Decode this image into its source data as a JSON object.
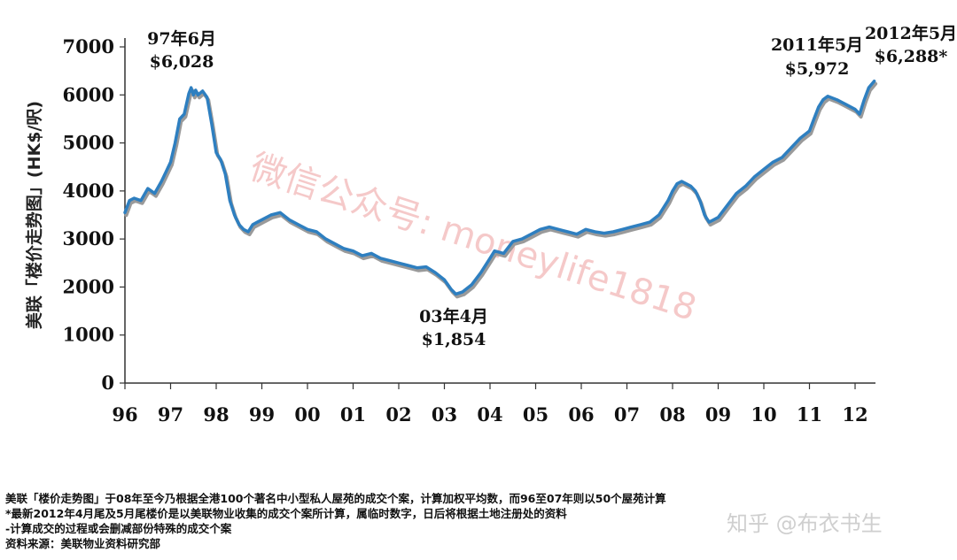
{
  "chart_data": {
    "type": "line",
    "ylabel": "美联「楼价走势图」(HK$/呎)",
    "yticks": [
      0,
      1000,
      2000,
      3000,
      4000,
      5000,
      6000,
      7000
    ],
    "ylim": [
      0,
      7000
    ],
    "xticks": [
      "96",
      "97",
      "98",
      "99",
      "00",
      "01",
      "02",
      "03",
      "04",
      "05",
      "06",
      "07",
      "08",
      "09",
      "10",
      "11",
      "12"
    ],
    "xlim": [
      1996.0,
      2012.45
    ],
    "grid": false,
    "colors": {
      "line": "#2e7fc0",
      "shadow": "#9a9a9a"
    },
    "series": [
      {
        "x": [
          1996.0,
          1996.1,
          1996.2,
          1996.35,
          1996.5,
          1996.65,
          1996.8,
          1996.9,
          1997.0,
          1997.1,
          1997.2,
          1997.3,
          1997.4,
          1997.45,
          1997.5,
          1997.55,
          1997.6,
          1997.7,
          1997.8,
          1997.9,
          1998.0,
          1998.1,
          1998.2,
          1998.3,
          1998.4,
          1998.5,
          1998.6,
          1998.7,
          1998.8,
          1998.9,
          1999.0,
          1999.2,
          1999.4,
          1999.6,
          1999.8,
          2000.0,
          2000.2,
          2000.4,
          2000.6,
          2000.8,
          2001.0,
          2001.2,
          2001.4,
          2001.6,
          2001.8,
          2002.0,
          2002.2,
          2002.4,
          2002.6,
          2002.8,
          2003.0,
          2003.15,
          2003.25,
          2003.4,
          2003.6,
          2003.8,
          2004.0,
          2004.1,
          2004.3,
          2004.5,
          2004.7,
          2004.9,
          2005.1,
          2005.3,
          2005.5,
          2005.7,
          2005.9,
          2006.1,
          2006.3,
          2006.5,
          2006.7,
          2006.9,
          2007.1,
          2007.3,
          2007.5,
          2007.7,
          2007.9,
          2008.0,
          2008.1,
          2008.2,
          2008.3,
          2008.4,
          2008.5,
          2008.6,
          2008.7,
          2008.8,
          2008.9,
          2009.0,
          2009.2,
          2009.4,
          2009.6,
          2009.8,
          2010.0,
          2010.2,
          2010.4,
          2010.6,
          2010.8,
          2011.0,
          2011.1,
          2011.2,
          2011.3,
          2011.4,
          2011.6,
          2011.8,
          2012.0,
          2012.1,
          2012.2,
          2012.3,
          2012.42
        ],
        "y": [
          3550,
          3800,
          3850,
          3800,
          4050,
          3950,
          4200,
          4400,
          4600,
          5000,
          5500,
          5600,
          6028,
          6150,
          6000,
          6100,
          6000,
          6080,
          5950,
          5400,
          4800,
          4650,
          4350,
          3800,
          3500,
          3300,
          3200,
          3150,
          3300,
          3350,
          3400,
          3500,
          3550,
          3400,
          3300,
          3200,
          3150,
          3000,
          2900,
          2800,
          2750,
          2650,
          2700,
          2600,
          2550,
          2500,
          2450,
          2400,
          2420,
          2300,
          2150,
          1950,
          1854,
          1900,
          2050,
          2300,
          2600,
          2750,
          2700,
          2950,
          3000,
          3100,
          3200,
          3250,
          3200,
          3150,
          3100,
          3200,
          3150,
          3120,
          3150,
          3200,
          3250,
          3300,
          3350,
          3500,
          3800,
          4000,
          4150,
          4200,
          4150,
          4100,
          4000,
          3800,
          3500,
          3350,
          3400,
          3450,
          3700,
          3950,
          4100,
          4300,
          4450,
          4600,
          4700,
          4900,
          5100,
          5250,
          5500,
          5750,
          5900,
          5972,
          5900,
          5800,
          5700,
          5600,
          5900,
          6150,
          6288
        ]
      }
    ],
    "annotations": [
      {
        "line1": "97年6月",
        "line2": "$6,028",
        "x": 1997.3,
        "y": 6028
      },
      {
        "line1": "03年4月",
        "line2": "$1,854",
        "x": 2003.25,
        "y": 1854
      },
      {
        "line1": "2011年5月",
        "line2": "$5,972",
        "x": 2011.35,
        "y": 5972
      },
      {
        "line1": "2012年5月",
        "line2": "$6,288*",
        "x": 2012.35,
        "y": 6288
      }
    ]
  },
  "watermark": "微信公众号: moneylife1818",
  "notes": [
    "美联「楼价走势图」于08年至今乃根据全港100个著名中小型私人屋苑的成交个案，计算加权平均数，而96至07年则以50个屋苑计算",
    "*最新2012年4月尾及5月尾楼价是以美联物业收集的成交个案所计算，属临时数字，日后将根据土地注册处的资料",
    " -计算成交的过程或会删减部份特殊的成交个案",
    "资料来源：美联物业资料研究部"
  ],
  "zhihu_watermark": "知乎 @布衣书生"
}
